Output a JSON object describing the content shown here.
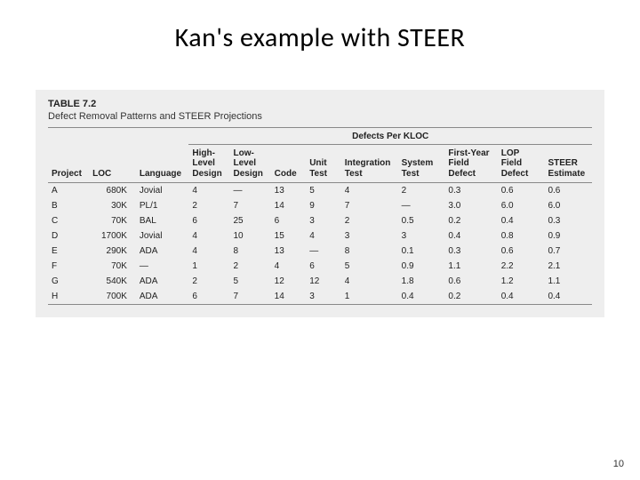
{
  "slide": {
    "title": "Kan's example with STEER",
    "page_number": "10"
  },
  "table": {
    "label": "TABLE 7.2",
    "caption": "Defect Removal Patterns and STEER Projections",
    "group_header": "Defects Per KLOC",
    "columns": {
      "project": "Project",
      "loc": "LOC",
      "language": "Language",
      "hld": "High-\nLevel\nDesign",
      "lld": "Low-\nLevel\nDesign",
      "code": "Code",
      "unit": "Unit\nTest",
      "integ": "Integration\nTest",
      "system": "System\nTest",
      "fyfd": "First-Year\nField\nDefect",
      "lopfd": "LOP\nField\nDefect",
      "steer": "STEER\nEstimate"
    },
    "rows": [
      {
        "project": "A",
        "loc": "680K",
        "language": "Jovial",
        "hld": "4",
        "lld": "—",
        "code": "13",
        "unit": "5",
        "integ": "4",
        "system": "2",
        "fyfd": "0.3",
        "lopfd": "0.6",
        "steer": "0.6"
      },
      {
        "project": "B",
        "loc": "30K",
        "language": "PL/1",
        "hld": "2",
        "lld": "7",
        "code": "14",
        "unit": "9",
        "integ": "7",
        "system": "—",
        "fyfd": "3.0",
        "lopfd": "6.0",
        "steer": "6.0"
      },
      {
        "project": "C",
        "loc": "70K",
        "language": "BAL",
        "hld": "6",
        "lld": "25",
        "code": "6",
        "unit": "3",
        "integ": "2",
        "system": "0.5",
        "fyfd": "0.2",
        "lopfd": "0.4",
        "steer": "0.3"
      },
      {
        "project": "D",
        "loc": "1700K",
        "language": "Jovial",
        "hld": "4",
        "lld": "10",
        "code": "15",
        "unit": "4",
        "integ": "3",
        "system": "3",
        "fyfd": "0.4",
        "lopfd": "0.8",
        "steer": "0.9"
      },
      {
        "project": "E",
        "loc": "290K",
        "language": "ADA",
        "hld": "4",
        "lld": "8",
        "code": "13",
        "unit": "—",
        "integ": "8",
        "system": "0.1",
        "fyfd": "0.3",
        "lopfd": "0.6",
        "steer": "0.7"
      },
      {
        "project": "F",
        "loc": "70K",
        "language": "—",
        "hld": "1",
        "lld": "2",
        "code": "4",
        "unit": "6",
        "integ": "5",
        "system": "0.9",
        "fyfd": "1.1",
        "lopfd": "2.2",
        "steer": "2.1"
      },
      {
        "project": "G",
        "loc": "540K",
        "language": "ADA",
        "hld": "2",
        "lld": "5",
        "code": "12",
        "unit": "12",
        "integ": "4",
        "system": "1.8",
        "fyfd": "0.6",
        "lopfd": "1.2",
        "steer": "1.1"
      },
      {
        "project": "H",
        "loc": "700K",
        "language": "ADA",
        "hld": "6",
        "lld": "7",
        "code": "14",
        "unit": "3",
        "integ": "1",
        "system": "0.4",
        "fyfd": "0.2",
        "lopfd": "0.4",
        "steer": "0.4"
      }
    ],
    "styling": {
      "background": "#eeeeee",
      "rule_color": "#888888",
      "header_fontsize_pt": 10,
      "body_fontsize_pt": 10,
      "col_widths_pct": [
        7,
        8,
        9,
        7,
        7,
        6,
        6,
        9,
        8,
        9,
        8,
        8
      ]
    }
  }
}
